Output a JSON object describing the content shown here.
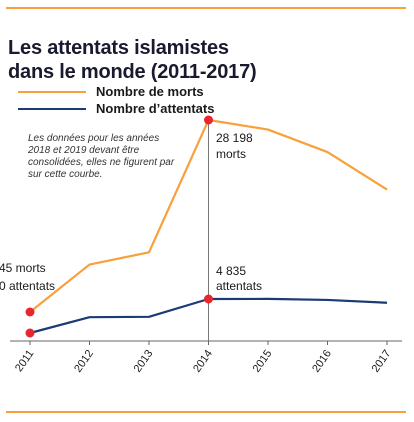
{
  "colors": {
    "accent": "#f7a03c",
    "deaths": "#f7a03c",
    "attacks": "#1c3a74",
    "marker": "#e8262d",
    "text": "#1a1a1a"
  },
  "title_line1": "Les attentats islamistes",
  "title_line2": "dans le monde (2011-2017)",
  "legend": {
    "deaths": "Nombre de morts",
    "attacks": "Nombre d’attentats"
  },
  "note": "Les données pour les années 2018 et 2019 devant être consolidées, elles ne figurent par sur cette courbe.",
  "annotations": {
    "a2011_deaths": "45 morts",
    "a2011_attacks": "0 attentats",
    "a2014_deaths_value": "28 198",
    "a2014_deaths_unit": "morts",
    "a2014_attacks_value": "4 835",
    "a2014_attacks_unit": "attentats"
  },
  "chart_data": {
    "type": "line",
    "x": [
      "2011",
      "2012",
      "2013",
      "2014",
      "2015",
      "2016",
      "2017"
    ],
    "series": [
      {
        "name": "Nombre de morts",
        "values": [
          45,
          7000,
          8800,
          28198,
          26800,
          23500,
          18000
        ]
      },
      {
        "name": "Nombre d’attentats",
        "values": [
          0,
          2250,
          2300,
          4835,
          4850,
          4700,
          4300
        ]
      }
    ],
    "grid": false
  }
}
